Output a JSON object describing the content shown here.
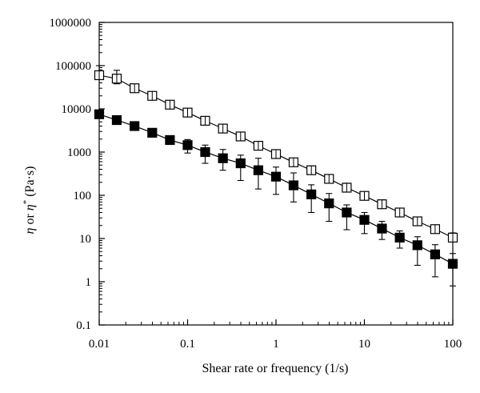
{
  "chart_data": {
    "type": "scatter",
    "title": "",
    "xlabel": "Shear rate or frequency (1/s)",
    "ylabel": {
      "eta": "η",
      "mid": " or ",
      "eta2": "η",
      "sup": "*",
      "unit": " (Pa·s)"
    },
    "xscale": "log",
    "yscale": "log",
    "xlim": [
      0.01,
      100
    ],
    "ylim": [
      0.1,
      1000000
    ],
    "grid": false,
    "legend": "none",
    "x_ticks": [
      0.01,
      0.1,
      1,
      10,
      100
    ],
    "x_tick_labels": [
      "0.01",
      "0.1",
      "1",
      "10",
      "100"
    ],
    "y_ticks": [
      0.1,
      1,
      10,
      100,
      1000,
      10000,
      100000,
      1000000
    ],
    "y_tick_labels": [
      "0.1",
      "1",
      "10",
      "100",
      "1000",
      "10000",
      "100000",
      "1000000"
    ],
    "x": [
      0.01,
      0.0158,
      0.0251,
      0.0398,
      0.0631,
      0.1,
      0.158,
      0.251,
      0.398,
      0.631,
      1,
      1.58,
      2.51,
      3.98,
      6.31,
      10,
      15.8,
      25.1,
      39.8,
      63.1,
      100
    ],
    "series": [
      {
        "marker": "open-square",
        "values": [
          60000,
          50000,
          30000,
          20000,
          12500,
          8200,
          5300,
          3500,
          2300,
          1400,
          900,
          580,
          380,
          240,
          150,
          97,
          62,
          40,
          25,
          16.5,
          10.5
        ],
        "err_low": [
          50000,
          38000,
          26000,
          17000,
          10800,
          7000,
          4500,
          3000,
          1950,
          1200,
          770,
          500,
          320,
          205,
          128,
          82,
          52,
          33,
          21,
          14,
          8.8
        ],
        "err_high": [
          100000,
          78000,
          36000,
          25000,
          15500,
          10000,
          6600,
          4400,
          2850,
          1700,
          1120,
          720,
          480,
          300,
          190,
          120,
          78,
          50,
          31,
          20,
          13.5
        ]
      },
      {
        "marker": "filled-square",
        "values": [
          7500,
          5500,
          4000,
          2800,
          1900,
          1450,
          1000,
          720,
          550,
          380,
          270,
          170,
          105,
          65,
          40,
          27,
          17,
          10.5,
          7,
          4.3,
          2.6
        ],
        "err_low": [
          6500,
          4800,
          3400,
          2400,
          1550,
          950,
          550,
          380,
          220,
          140,
          105,
          70,
          40,
          25,
          16,
          13,
          9.5,
          6,
          2.4,
          1.3,
          0.8
        ],
        "err_high": [
          8500,
          6300,
          4600,
          3300,
          2300,
          1950,
          1450,
          1150,
          850,
          720,
          450,
          330,
          175,
          110,
          60,
          40,
          25,
          15,
          11,
          7.2,
          4.5
        ]
      }
    ]
  }
}
